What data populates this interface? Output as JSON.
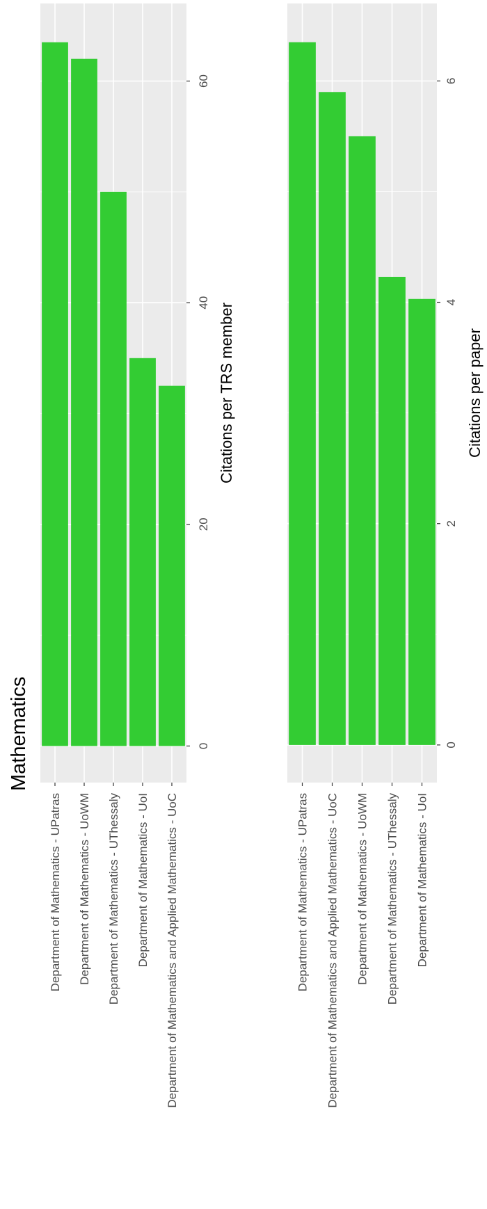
{
  "figure": {
    "title": "Mathematics"
  },
  "chart_data": [
    {
      "type": "bar",
      "orientation": "horizontal",
      "categories": [
        "Department of Mathematics - UPatras",
        "Department of Mathematics - UoWM",
        "Department of Mathematics - UThessaly",
        "Department of Mathematics - UoI",
        "Department of Mathematics and Applied Mathematics - UoC"
      ],
      "values": [
        63.5,
        62.0,
        50.0,
        35.0,
        32.5
      ],
      "xlabel": "Citations per TRS member",
      "ylabel": "",
      "xlim": [
        -3.3,
        67
      ],
      "xticks": [
        0,
        20,
        40,
        60
      ],
      "grid": true,
      "bar_color": "#33CC33"
    },
    {
      "type": "bar",
      "orientation": "horizontal",
      "categories": [
        "Department of Mathematics - UPatras",
        "Department of Mathematics and Applied Mathematics - UoC",
        "Department of Mathematics - UoWM",
        "Department of Mathematics - UThessaly",
        "Department of Mathematics - UoI"
      ],
      "values": [
        6.35,
        5.9,
        5.5,
        4.23,
        4.03
      ],
      "xlabel": "Citations per paper",
      "ylabel": "",
      "xlim": [
        -0.34,
        6.7
      ],
      "xticks": [
        0,
        2,
        4,
        6
      ],
      "grid": true,
      "bar_color": "#33CC33"
    }
  ],
  "colors": {
    "panel_background": "#EBEBEB",
    "grid": "#FFFFFF",
    "tick_label": "#4D4D4D",
    "axis_title": "#000000"
  }
}
